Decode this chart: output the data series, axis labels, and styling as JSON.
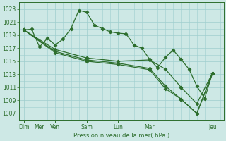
{
  "background_color": "#cde8e5",
  "grid_color": "#9ecece",
  "line_color": "#2d6e2d",
  "title": "Pression niveau de la mer( hPa )",
  "ylim": [
    1006,
    1024
  ],
  "yticks": [
    1007,
    1009,
    1011,
    1013,
    1015,
    1017,
    1019,
    1021,
    1023
  ],
  "series1": {
    "x": [
      0,
      0.5,
      1,
      1.5,
      2,
      2.5,
      3,
      3.5,
      4,
      4.5,
      5,
      5.5,
      6,
      6.5,
      7,
      7.5,
      8,
      8.5,
      9,
      9.5,
      10,
      10.5,
      11,
      11.5,
      12
    ],
    "y": [
      1019.8,
      1019.9,
      1017.2,
      1018.5,
      1017.5,
      1018.4,
      1020.0,
      1022.8,
      1022.5,
      1020.5,
      1020.0,
      1019.5,
      1019.3,
      1019.2,
      1017.5,
      1017.0,
      1015.3,
      1014.0,
      1015.6,
      1016.7,
      1015.3,
      1013.8,
      1011.2,
      1009.3,
      1013.2
    ]
  },
  "series2": {
    "x": [
      0,
      2,
      4,
      6,
      8,
      9,
      10,
      11,
      12
    ],
    "y": [
      1019.8,
      1016.8,
      1015.5,
      1015.0,
      1015.2,
      1013.8,
      1011.0,
      1008.5,
      1013.2
    ]
  },
  "series3": {
    "x": [
      0,
      2,
      4,
      6,
      8,
      9,
      10,
      11,
      12
    ],
    "y": [
      1019.8,
      1016.5,
      1015.2,
      1014.7,
      1013.9,
      1011.2,
      1009.2,
      1007.0,
      1013.2
    ]
  },
  "series4": {
    "x": [
      0,
      2,
      4,
      6,
      8,
      9,
      10,
      11,
      12
    ],
    "y": [
      1019.8,
      1016.3,
      1015.0,
      1014.5,
      1013.7,
      1010.8,
      1009.2,
      1007.0,
      1013.2
    ]
  },
  "x_tick_positions": [
    0,
    1,
    2,
    4,
    6,
    8,
    12
  ],
  "x_tick_labels": [
    "Dim",
    "Mer",
    "Ven",
    "Sam",
    "Lun",
    "Mar",
    "Jeu"
  ]
}
